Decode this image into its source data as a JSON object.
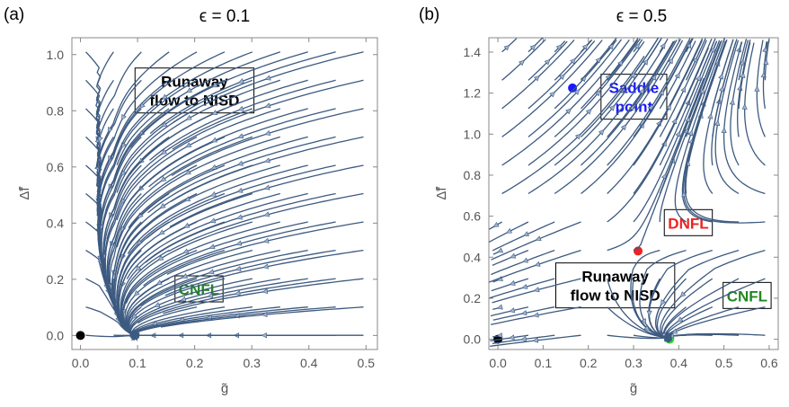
{
  "chart_data": [
    {
      "type": "streamplot",
      "panel_label": "(a)",
      "title": "ϵ = 0.1",
      "xlabel": "g̃",
      "ylabel": "Δ̃f",
      "xlim": [
        -0.015,
        0.52
      ],
      "ylim": [
        -0.05,
        1.06
      ],
      "xticks": [
        0.0,
        0.1,
        0.2,
        0.3,
        0.4,
        0.5
      ],
      "yticks": [
        0.0,
        0.2,
        0.4,
        0.6,
        0.8,
        1.0
      ],
      "tick_labels_x": [
        "0.0",
        "0.1",
        "0.2",
        "0.3",
        "0.4",
        "0.5"
      ],
      "tick_labels_y": [
        "0.0",
        "0.2",
        "0.4",
        "0.6",
        "0.8",
        "1.0"
      ],
      "stream_color": "#3d5a80",
      "arrow_color": "#9fb4d3",
      "points": [
        {
          "x": 0.0,
          "y": 0.0,
          "color": "#000000"
        },
        {
          "x": 0.095,
          "y": 0.0,
          "color": "#33dd33"
        }
      ],
      "annotations": [
        {
          "text": "Runaway\nflow to NISD",
          "x": 0.105,
          "y": 0.885,
          "color": "#000000"
        },
        {
          "text": "CNFL",
          "x": 0.175,
          "y": 0.145,
          "color": "#228822"
        }
      ]
    },
    {
      "type": "streamplot",
      "panel_label": "(b)",
      "title": "ϵ = 0.5",
      "xlabel": "g̃",
      "ylabel": "Δ̃f",
      "xlim": [
        -0.02,
        0.62
      ],
      "ylim": [
        -0.05,
        1.47
      ],
      "xticks": [
        0.0,
        0.1,
        0.2,
        0.3,
        0.4,
        0.5,
        0.6
      ],
      "yticks": [
        0.0,
        0.2,
        0.4,
        0.6,
        0.8,
        1.0,
        1.2,
        1.4
      ],
      "tick_labels_x": [
        "0.0",
        "0.1",
        "0.2",
        "0.3",
        "0.4",
        "0.5",
        "0.6"
      ],
      "tick_labels_y": [
        "0.0",
        "0.2",
        "0.4",
        "0.6",
        "0.8",
        "1.0",
        "1.2",
        "1.4"
      ],
      "stream_color": "#3d5a80",
      "arrow_color": "#9fb4d3",
      "points": [
        {
          "x": 0.0,
          "y": 0.0,
          "color": "#000000"
        },
        {
          "x": 0.165,
          "y": 1.225,
          "color": "#1a1aff"
        },
        {
          "x": 0.31,
          "y": 0.43,
          "color": "#ee2222"
        },
        {
          "x": 0.38,
          "y": 0.0,
          "color": "#33dd33"
        }
      ],
      "annotations": [
        {
          "text": "Saddle\npoint",
          "x": 0.24,
          "y": 1.2,
          "color": "#1a1aff"
        },
        {
          "text": "DNFL",
          "x": 0.38,
          "y": 0.54,
          "color": "#ee2222"
        },
        {
          "text": "Runaway\nflow to NISD",
          "x": 0.14,
          "y": 0.28,
          "color": "#000000"
        },
        {
          "text": "CNFL",
          "x": 0.51,
          "y": 0.185,
          "color": "#228822"
        }
      ]
    }
  ]
}
